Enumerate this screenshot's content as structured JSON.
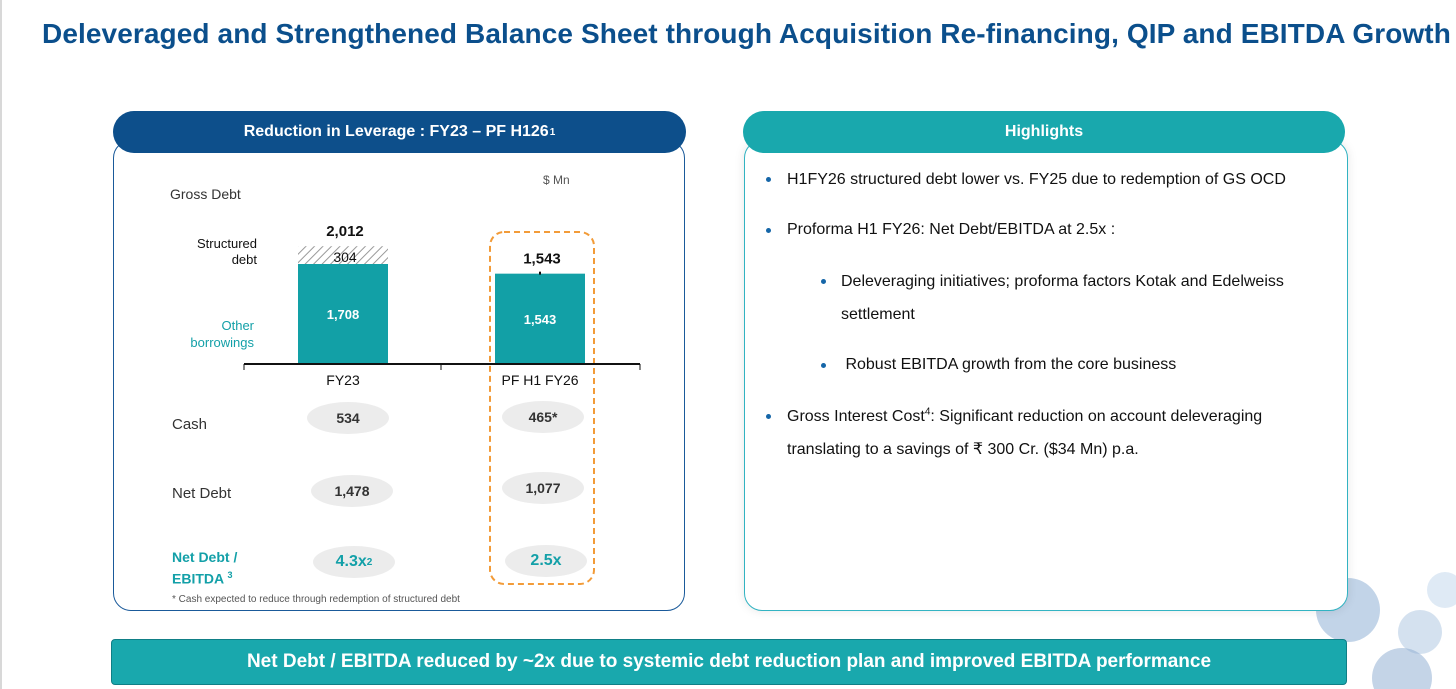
{
  "title": "Deleveraged and Strengthened Balance Sheet through Acquisition Re-financing, QIP and EBITDA Growth",
  "left_panel": {
    "header": "Reduction in Leverage : FY23 – PF H126",
    "header_sup": "1",
    "unit": "$ Mn",
    "footnote": "* Cash expected to reduce through redemption of structured debt"
  },
  "row_labels": {
    "gross_debt": "Gross Debt",
    "structured_debt_line1": "Structured",
    "structured_debt_line2": "debt",
    "other_borrowings_line1": "Other",
    "other_borrowings_line2": "borrowings",
    "cash": "Cash",
    "net_debt": "Net Debt",
    "ratio_line1": "Net Debt /",
    "ratio_line2": "EBITDA",
    "ratio_sup": "3"
  },
  "chart_data": {
    "type": "bar",
    "stacked": true,
    "categories": [
      "FY23",
      "PF H1 FY26"
    ],
    "series": [
      {
        "name": "Other borrowings",
        "values": [
          1708,
          1543
        ],
        "color": "#12a0a6"
      },
      {
        "name": "Structured debt",
        "values": [
          304,
          0
        ],
        "pattern": "hatched"
      }
    ],
    "totals": [
      "2,012",
      "1,543"
    ],
    "data_labels": {
      "other": [
        "1,708",
        "1,543"
      ],
      "structured": [
        "304",
        ""
      ]
    },
    "highlight_category": "PF H1 FY26"
  },
  "metrics": {
    "cash": [
      "534",
      "465*"
    ],
    "net_debt": [
      "1,478",
      "1,077"
    ],
    "ratio": [
      "4.3x",
      "2.5x"
    ],
    "ratio_sup": [
      "2",
      ""
    ]
  },
  "highlights": {
    "header": "Highlights",
    "b1": "H1FY26 structured debt lower vs. FY25 due to redemption of GS OCD",
    "b2": "Proforma H1 FY26: Net Debt/EBITDA at 2.5x :",
    "b2a_line1": "Deleveraging initiatives;  proforma factors Kotak and Edelweiss",
    "b2a_line2": "settlement",
    "b2b": " Robust EBITDA growth from the core business",
    "b3_line1_a": "Gross Interest Cost",
    "b3_sup": "4",
    "b3_line1_b": ":  Significant reduction on account deleveraging",
    "b3_line2": "translating to a savings of ₹ 300 Cr. ($34 Mn) p.a."
  },
  "footer": "Net Debt  / EBITDA reduced by ~2x  due to systemic debt reduction plan and improved EBITDA performance",
  "colors": {
    "dark_blue": "#0d4f8b",
    "teal": "#19a8ad",
    "orange_dash": "#f29b38"
  }
}
